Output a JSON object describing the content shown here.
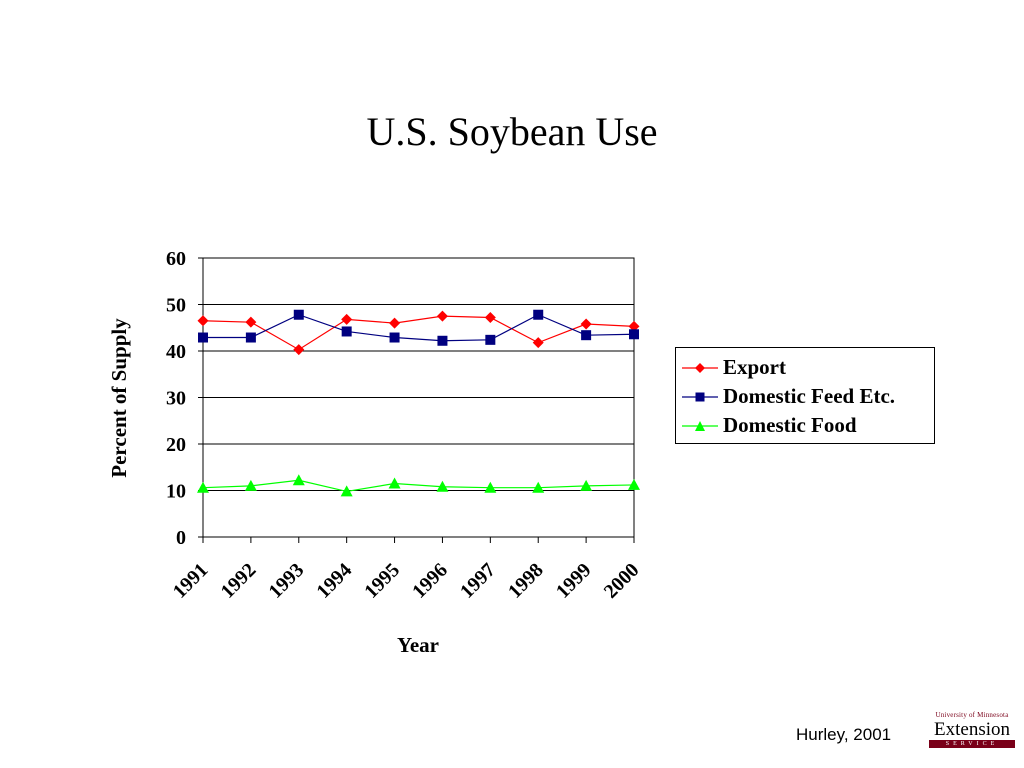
{
  "slide": {
    "title": "U.S. Soybean Use",
    "credit": "Hurley, 2001"
  },
  "logo": {
    "university": "University of Minnesota",
    "name": "Extension",
    "service": "SERVICE"
  },
  "colors": {
    "export": "#ff0000",
    "feed": "#000080",
    "food": "#00ff00",
    "gridline": "#000000",
    "background": "#ffffff"
  },
  "chart_data": {
    "type": "line",
    "title": "",
    "xlabel": "Year",
    "ylabel": "Percent of Supply",
    "ylim": [
      0,
      60
    ],
    "yticks": [
      0,
      10,
      20,
      30,
      40,
      50,
      60
    ],
    "grid": "horizontal",
    "legend_position": "right",
    "categories": [
      "1991",
      "1992",
      "1993",
      "1994",
      "1995",
      "1996",
      "1997",
      "1998",
      "1999",
      "2000"
    ],
    "series": [
      {
        "name": "Export",
        "marker": "diamond",
        "color": "#ff0000",
        "values": [
          46.5,
          46.2,
          40.3,
          46.8,
          46.0,
          47.5,
          47.2,
          41.8,
          45.8,
          45.3
        ]
      },
      {
        "name": "Domestic Feed Etc.",
        "marker": "square",
        "color": "#000080",
        "values": [
          42.9,
          42.9,
          47.8,
          44.2,
          42.9,
          42.2,
          42.4,
          47.8,
          43.4,
          43.6
        ]
      },
      {
        "name": "Domestic Food",
        "marker": "triangle",
        "color": "#00ff00",
        "values": [
          10.6,
          11.0,
          12.2,
          9.8,
          11.5,
          10.8,
          10.6,
          10.6,
          11.0,
          11.2
        ]
      }
    ]
  }
}
